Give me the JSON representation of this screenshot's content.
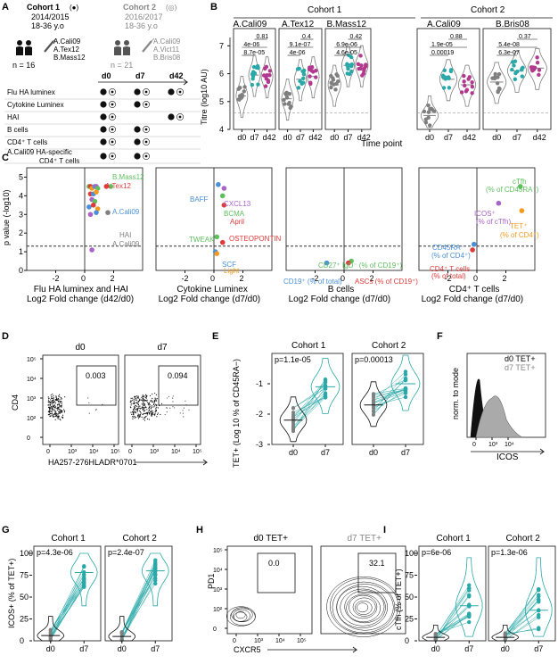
{
  "colors": {
    "teal": "#2aa8a8",
    "magenta": "#b3398e",
    "gray": "#7f7f7f",
    "green": "#5fbf5f",
    "red": "#e03a3a",
    "orange": "#f39a1f",
    "blue": "#4a90d9",
    "purple": "#a964c8"
  },
  "panel_A": {
    "letter": "A",
    "cohort1": {
      "title": "Cohort 1",
      "marker": "(●)",
      "years": "2014/2015",
      "age": "18-36 y.o",
      "n": "n = 16",
      "strains": [
        "A.Cali09",
        "A.Tex12",
        "B.Mass12"
      ]
    },
    "cohort2": {
      "title": "Cohort 2",
      "marker": "(◎)",
      "years": "2016/2017",
      "age": "18-36 y.o",
      "n": "n = 21",
      "strains": [
        "A.Cali09",
        "A.Vict11",
        "B.Bris08"
      ]
    },
    "timepoints": [
      "d0",
      "d7",
      "d42"
    ],
    "assays": [
      {
        "label": "Flu HA luminex",
        "d0": "both",
        "d7": "both",
        "d42": "both"
      },
      {
        "label": "Cytokine Luminex",
        "d0": "both",
        "d7": "both",
        "d42": ""
      },
      {
        "label": "HAI",
        "d0": "both",
        "d7": "",
        "d42": "both"
      },
      {
        "label": "B cells",
        "d0": "both",
        "d7": "both",
        "d42": ""
      },
      {
        "label": "CD4⁺ T cells",
        "d0": "both",
        "d7": "both",
        "d42": ""
      },
      {
        "label": "A.Cali09 HA-specific CD4⁺ T cells",
        "d0": "both",
        "d7": "both",
        "d42": ""
      }
    ]
  },
  "panel_B": {
    "letter": "B",
    "cohort1_label": "Cohort 1",
    "cohort2_label": "Cohort 2",
    "ylabel": "Titre (log10 AU)",
    "xlabel": "Time point",
    "yticks": [
      "4",
      "5",
      "6",
      "7"
    ],
    "xticks": [
      "d0",
      "d7",
      "d42"
    ],
    "subplots": [
      {
        "title": "A.Cali09",
        "pvals": [
          "8.7e-05",
          "4e-06",
          "0.81"
        ],
        "medians": [
          5.2,
          5.95,
          5.9
        ]
      },
      {
        "title": "A.Tex12",
        "pvals": [
          "4e-06",
          "9.1e-07",
          "0.4"
        ],
        "medians": [
          5.1,
          5.8,
          5.9
        ]
      },
      {
        "title": "B.Mass12",
        "pvals": [
          "4.6e-05",
          "6.9e-06",
          "0.42"
        ],
        "medians": [
          5.6,
          6.3,
          6.3
        ]
      },
      {
        "title": "A.Cali09",
        "pvals": [
          "0.00019",
          "1.9e-05",
          "0.88"
        ],
        "medians": [
          4.5,
          5.8,
          5.6
        ]
      },
      {
        "title": "B.Bris08",
        "pvals": [
          "6.3e-07",
          "5.4e-08",
          "0.37"
        ],
        "medians": [
          5.7,
          6.1,
          6.2
        ]
      }
    ]
  },
  "panel_C": {
    "letter": "C",
    "ylabel": "p value (-log10)",
    "yticks": [
      "0",
      "1",
      "2",
      "3",
      "4",
      "5"
    ],
    "xticks": [
      "-2",
      "0",
      "2"
    ],
    "subplots": [
      {
        "xlabel1": "Flu HA luminex and HAI",
        "xlabel2": "Log2 Fold change (d42/d0)",
        "labels": [
          {
            "text": "B.Mass12",
            "color": "#5fbf5f"
          },
          {
            "text": "A.Tex12",
            "color": "#e03a3a"
          },
          {
            "text": "A.Cali09",
            "color": "#4a90d9"
          },
          {
            "text": "HAI",
            "color": "#7f7f7f"
          },
          {
            "text": "A.Cali09",
            "color": "#7f7f7f"
          }
        ]
      },
      {
        "xlabel1": "Cytokine Luminex",
        "xlabel2": "Log2 Fold change (d7/d0)",
        "labels": [
          {
            "text": "BAFF",
            "color": "#4a90d9"
          },
          {
            "text": "CXCL13",
            "color": "#a964c8"
          },
          {
            "text": "BCMA",
            "color": "#5fbf5f"
          },
          {
            "text": "April",
            "color": "#e03a3a"
          },
          {
            "text": "TWEAK",
            "color": "#5fbf5f"
          },
          {
            "text": "OSTEOPONTIN",
            "color": "#e03a3a"
          },
          {
            "text": "SCF",
            "color": "#4a90d9"
          },
          {
            "text": "Light",
            "color": "#f39a1f"
          }
        ]
      },
      {
        "xlabel1": "B cells",
        "xlabel2": "Log2 Fold change (d7/d0)",
        "labels": [
          {
            "text": "CD27⁺ IgD⁻ (% of CD19⁺)",
            "color": "#5fbf5f"
          },
          {
            "text": "CD19⁺ (% of total)",
            "color": "#4a90d9"
          },
          {
            "text": "ASCs (% of CD19⁺)",
            "color": "#e03a3a"
          }
        ]
      },
      {
        "xlabel1": "CD4⁺ T cells",
        "xlabel2": "Log2 Fold change (d7/d0)",
        "labels": [
          {
            "text": "cTfh",
            "color": "#5fbf5f"
          },
          {
            "text": "(% of CD45RA⁻)",
            "color": "#5fbf5f"
          },
          {
            "text": "ICOS⁺",
            "color": "#a964c8"
          },
          {
            "text": "(% of cTfh)",
            "color": "#a964c8"
          },
          {
            "text": "TET⁺",
            "color": "#f39a1f"
          },
          {
            "text": "(% of CD4⁺)",
            "color": "#f39a1f"
          },
          {
            "text": "CD45RA⁻",
            "color": "#4a90d9"
          },
          {
            "text": "(% of CD4⁺)",
            "color": "#4a90d9"
          },
          {
            "text": "CD4⁺ T cells",
            "color": "#e03a3a"
          },
          {
            "text": "(% of total)",
            "color": "#e03a3a"
          }
        ]
      }
    ]
  },
  "panel_D": {
    "letter": "D",
    "titles": [
      "d0",
      "d7"
    ],
    "gates": [
      "0.003",
      "0.094"
    ],
    "ylabel": "CD4",
    "xlabel": "HA257-276HLADR*0701",
    "yticks": [
      "10⁵",
      "10⁴",
      "10³",
      "10²",
      "0"
    ],
    "xticks": [
      "0",
      "10³",
      "10⁴",
      "10⁵"
    ]
  },
  "panel_E": {
    "letter": "E",
    "titles": [
      "Cohort 1",
      "Cohort 2"
    ],
    "pvals": [
      "p=1.1e-05",
      "p=0.00013"
    ],
    "ylabel": "TET+ (Log 10 % of CD45RA−)",
    "yticks": [
      "-1",
      "-2",
      "-3"
    ],
    "xticks": [
      "d0",
      "d7"
    ]
  },
  "panel_F": {
    "letter": "F",
    "legend": [
      "d0 TET+",
      "d7 TET+"
    ],
    "ylabel": "norm. to mode",
    "xlabel": "ICOS",
    "xticks": [
      "0",
      "10³",
      "10⁴"
    ]
  },
  "panel_G": {
    "letter": "G",
    "titles": [
      "Cohort 1",
      "Cohort 2"
    ],
    "pvals": [
      "p=4.3e-06",
      "p=2.4e-07"
    ],
    "ylabel": "ICOS+ (% of TET+)",
    "yticks": [
      "0",
      "25",
      "50",
      "75",
      "100"
    ],
    "xticks": [
      "d0",
      "d7"
    ]
  },
  "panel_H": {
    "letter": "H",
    "titles": [
      "d0 TET+",
      "d7 TET+"
    ],
    "gates": [
      "0.0",
      "32.1"
    ],
    "ylabel": "PD1",
    "xlabel": "CXCR5",
    "yticks": [
      "10⁵",
      "10⁴",
      "10³",
      "10²",
      "0"
    ],
    "xticks": [
      "0",
      "10³",
      "10⁴",
      "10⁵"
    ]
  },
  "panel_I": {
    "letter": "I",
    "titles": [
      "Cohort 1",
      "Cohort 2"
    ],
    "pvals": [
      "p=6e-06",
      "p=1.3e-06"
    ],
    "ylabel": "cTfh (% of TET+)",
    "yticks": [
      "0",
      "25",
      "50",
      "75",
      "100"
    ],
    "xticks": [
      "d0",
      "d7"
    ]
  },
  "chart_data": [
    {
      "type": "scatter",
      "panel": "B",
      "subtype": "violin",
      "ylabel": "Titre (log10 AU)",
      "xlabel": "Time point",
      "ylim": [
        4,
        7.3
      ],
      "series": [
        {
          "name": "A.Cali09",
          "categories": [
            "d0",
            "d7",
            "d42"
          ],
          "medians": [
            5.2,
            5.95,
            5.9
          ]
        },
        {
          "name": "A.Tex12",
          "categories": [
            "d0",
            "d7",
            "d42"
          ],
          "medians": [
            5.1,
            5.8,
            5.9
          ]
        },
        {
          "name": "B.Mass12",
          "categories": [
            "d0",
            "d7",
            "d42"
          ],
          "medians": [
            5.6,
            6.3,
            6.3
          ]
        },
        {
          "name": "A.Cali09",
          "categories": [
            "d0",
            "d7",
            "d42"
          ],
          "medians": [
            4.5,
            5.8,
            5.6
          ]
        },
        {
          "name": "B.Bris08",
          "categories": [
            "d0",
            "d7",
            "d42"
          ],
          "medians": [
            5.7,
            6.1,
            6.2
          ]
        }
      ]
    },
    {
      "type": "scatter",
      "panel": "C",
      "xlim": [
        -4,
        4
      ],
      "ylim": [
        0,
        5.5
      ],
      "threshold": 1.3,
      "series": [
        {
          "name": "Flu HA luminex and HAI",
          "x": [
            0.3,
            0.4,
            0.5,
            0.7,
            0.8,
            0.9,
            0.4,
            0.6,
            0.8,
            0.5,
            0.7,
            0.3,
            0.6,
            0.9,
            0.4,
            0.8,
            1.6,
            1.8,
            1.5,
            0.5
          ],
          "y": [
            4.5,
            4.5,
            4.4,
            4.5,
            4.5,
            4.4,
            4.1,
            4.1,
            4.2,
            3.8,
            3.7,
            3.4,
            3.5,
            3.3,
            3.0,
            3.1,
            3.1,
            4.5,
            4.5,
            1.1
          ]
        },
        {
          "name": "Cytokine Luminex",
          "x": [
            0.3,
            0.7,
            0.6,
            0.7,
            0.2,
            0.6,
            0.1,
            0.2
          ],
          "y": [
            4.6,
            4.4,
            4.0,
            3.5,
            1.8,
            1.5,
            1.0,
            0.9
          ]
        },
        {
          "name": "B cells",
          "x": [
            0.5,
            -1.2,
            0.3
          ],
          "y": [
            0.5,
            0.4,
            0.4
          ]
        },
        {
          "name": "CD4⁺ T cells",
          "x": [
            3.0,
            1.5,
            3.1,
            -0.2,
            -0.3
          ],
          "y": [
            4.5,
            3.6,
            3.2,
            1.4,
            1.1
          ]
        }
      ]
    },
    {
      "type": "scatter",
      "panel": "E",
      "subtype": "violin-paired",
      "ylim": [
        -3,
        0
      ],
      "series": [
        {
          "name": "Cohort 1",
          "medians": [
            -2.2,
            -1.1
          ]
        },
        {
          "name": "Cohort 2",
          "medians": [
            -1.7,
            -1.0
          ]
        }
      ]
    },
    {
      "type": "scatter",
      "panel": "G",
      "subtype": "violin-paired",
      "ylim": [
        0,
        100
      ],
      "series": [
        {
          "name": "Cohort 1",
          "medians": [
            6,
            78
          ]
        },
        {
          "name": "Cohort 2",
          "medians": [
            5,
            80
          ]
        }
      ]
    },
    {
      "type": "scatter",
      "panel": "I",
      "subtype": "violin-paired",
      "ylim": [
        0,
        100
      ],
      "series": [
        {
          "name": "Cohort 1",
          "medians": [
            4,
            40
          ]
        },
        {
          "name": "Cohort 2",
          "medians": [
            4,
            35
          ]
        }
      ]
    }
  ]
}
